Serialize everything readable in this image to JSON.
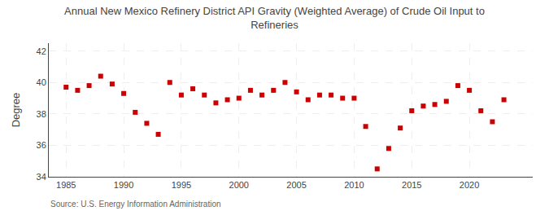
{
  "chart_data": {
    "type": "scatter",
    "title": "Annual New Mexico Refinery District API Gravity (Weighted Average) of Crude Oil Input to\nRefineries",
    "ylabel": "Degree",
    "annotations": [
      "Source: U.S. Energy Information Administration"
    ],
    "x": [
      1985,
      1986,
      1987,
      1988,
      1989,
      1990,
      1991,
      1992,
      1993,
      1994,
      1995,
      1996,
      1997,
      1998,
      1999,
      2000,
      2001,
      2002,
      2003,
      2004,
      2005,
      2006,
      2007,
      2008,
      2009,
      2010,
      2011,
      2012,
      2013,
      2014,
      2015,
      2016,
      2017,
      2018,
      2019,
      2020,
      2021,
      2022,
      2023
    ],
    "values": [
      39.7,
      39.5,
      39.8,
      40.4,
      39.9,
      39.3,
      38.1,
      37.4,
      36.7,
      40.0,
      39.2,
      39.6,
      39.2,
      38.7,
      38.9,
      39.0,
      39.5,
      39.2,
      39.5,
      40.0,
      39.4,
      38.9,
      39.2,
      39.2,
      39.0,
      39.0,
      37.2,
      34.5,
      35.8,
      37.1,
      38.2,
      38.5,
      38.6,
      38.8,
      39.8,
      39.5,
      38.2,
      37.5,
      38.9
    ],
    "color": "#cc0000",
    "marker": "square",
    "xlim": [
      1983.5,
      2025.5
    ],
    "xticks": [
      1985,
      1990,
      1995,
      2000,
      2005,
      2010,
      2015,
      2020
    ],
    "ylim": [
      34,
      42.5
    ],
    "yticks": [
      34,
      36,
      38,
      40,
      42
    ],
    "grid": true
  }
}
